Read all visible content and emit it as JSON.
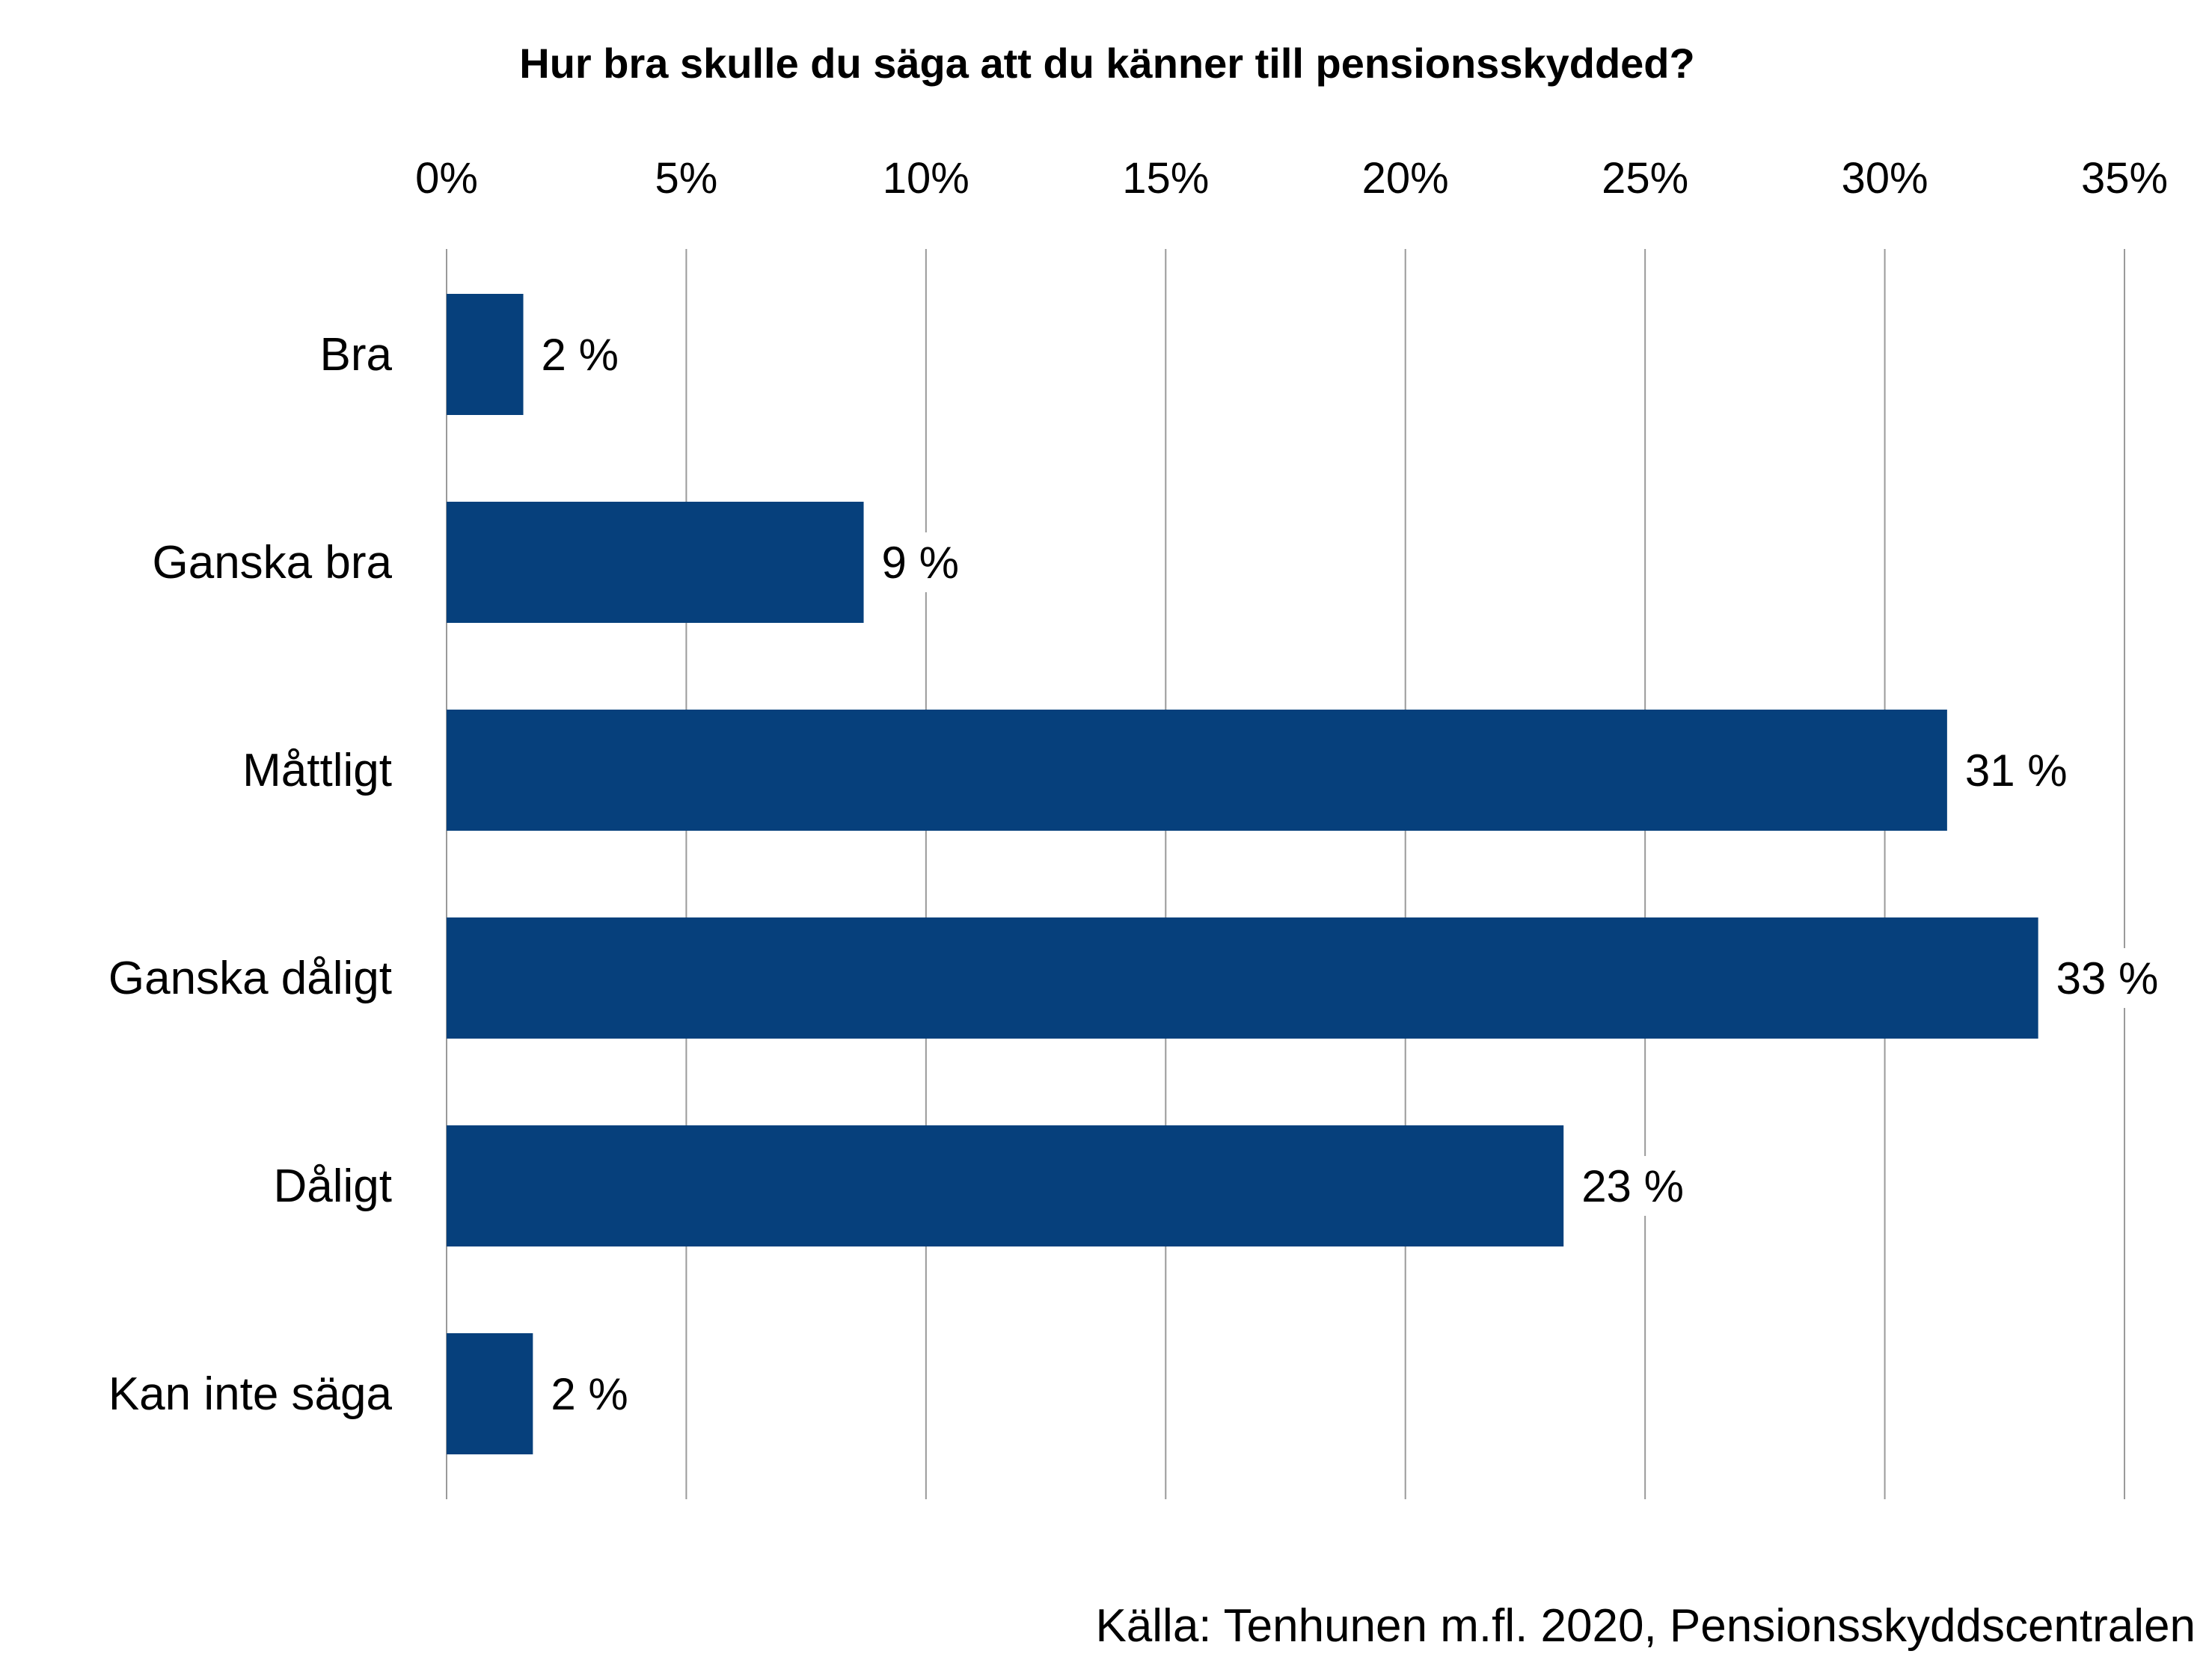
{
  "chart_data": {
    "type": "bar",
    "orientation": "horizontal",
    "title": "Hur bra skulle du säga att du känner till pensionsskydded?",
    "categories": [
      "Bra",
      "Ganska bra",
      "Måttligt",
      "Ganska dåligt",
      "Dåligt",
      "Kan inte säga"
    ],
    "values": [
      1.6,
      8.7,
      31.3,
      33.2,
      23.3,
      1.8
    ],
    "value_labels": [
      "2 %",
      "9 %",
      "31 %",
      "33 %",
      "23 %",
      "2 %"
    ],
    "xlim": [
      0,
      35
    ],
    "x_ticks": [
      0,
      5,
      10,
      15,
      20,
      25,
      30,
      35
    ],
    "x_tick_labels": [
      "0%",
      "5%",
      "10%",
      "15%",
      "20%",
      "25%",
      "30%",
      "35%"
    ],
    "x_axis_position": "top",
    "grid": true,
    "bar_color": "#06407c",
    "gridline_color": "#9a9a9a",
    "source": "Källa: Tenhunen m.fl. 2020, Pensionsskyddscentralen"
  }
}
